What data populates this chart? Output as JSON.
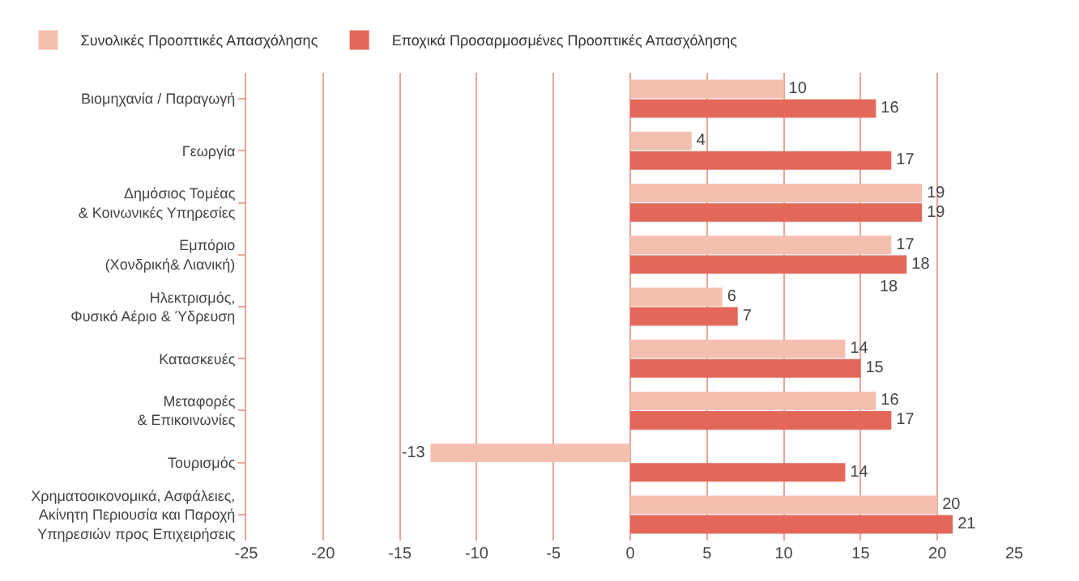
{
  "chart_data": {
    "type": "bar",
    "orientation": "horizontal",
    "categories": [
      "Βιομηχανία / Παραγωγή",
      "Γεωργία",
      "Δημόσιος Τομέας\n& Κοινωνικές Υπηρεσίες",
      "Εμπόριο\n(Χονδρική& Λιανική)",
      "Ηλεκτρισμός,\nΦυσικό Αέριο & Ύδρευση",
      "Κατασκευές",
      "Μεταφορές\n& Επικοινωνίες",
      "Τουρισμός",
      "Χρηματοοικονομικά, Ασφάλειες,\nΑκίνητη Περιουσία και Παροχή\nΥπηρεσιών προς Επιχειρήσεις"
    ],
    "series": [
      {
        "name": "Συνολικές Προοπτικές Απασχόλησης",
        "color": "#f5bfb0",
        "values": [
          10,
          4,
          19,
          17,
          6,
          14,
          16,
          -13,
          20
        ]
      },
      {
        "name": "Εποχικά Προσαρμοσμένες Προοπτικές Απασχόλησης",
        "color": "#e4685a",
        "values": [
          16,
          17,
          19,
          18,
          7,
          15,
          17,
          14,
          21
        ]
      }
    ],
    "xlim": [
      -25,
      25
    ],
    "xticks": [
      -25,
      -20,
      -15,
      -10,
      -5,
      0,
      5,
      10,
      15,
      20,
      25
    ],
    "grid": "x",
    "legend": "top",
    "data_labels": true,
    "annotations": [
      "18"
    ]
  }
}
